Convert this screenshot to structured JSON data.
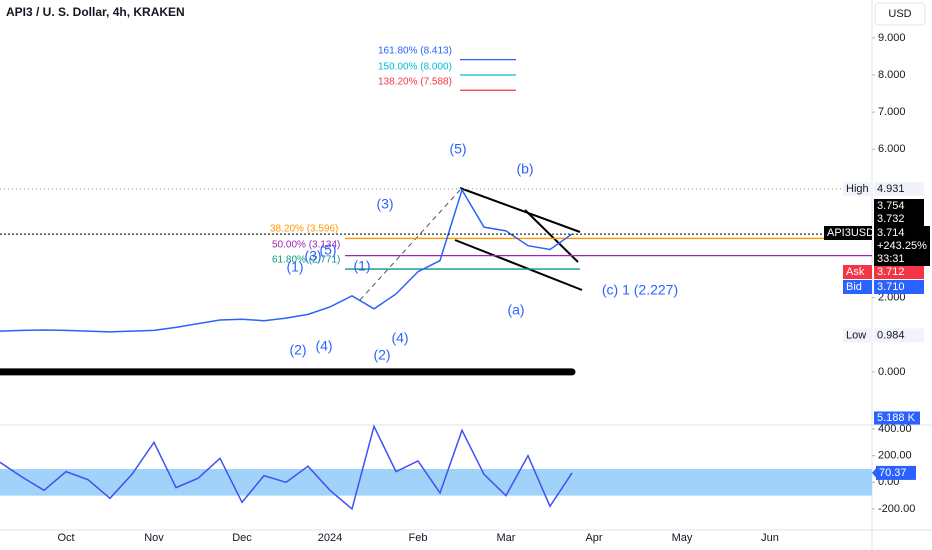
{
  "header": {
    "title": "API3 / U. S. Dollar, 4h, KRAKEN",
    "currency": "USD"
  },
  "chart_data": [
    {
      "type": "line",
      "categories": [
        null,
        null,
        null,
        "Oct",
        null,
        null,
        null,
        "Nov",
        null,
        null,
        null,
        "Dec",
        null,
        null,
        null,
        "2024",
        null,
        null,
        null,
        "Feb",
        null,
        null,
        null,
        "Mar",
        null,
        null,
        null,
        "Apr",
        null,
        null,
        null,
        "May",
        null,
        null,
        null,
        "Jun",
        null,
        null,
        null,
        null
      ],
      "values": [
        1.1,
        1.12,
        1.13,
        1.12,
        1.1,
        1.08,
        1.1,
        1.12,
        1.2,
        1.3,
        1.4,
        1.42,
        1.38,
        1.45,
        1.55,
        1.75,
        2.05,
        1.7,
        2.1,
        2.7,
        3.0,
        4.9,
        3.9,
        3.8,
        3.4,
        3.3,
        3.714,
        null,
        null,
        null,
        null,
        null,
        null,
        null,
        null,
        null,
        null,
        null,
        null,
        null
      ],
      "color": "#2962ff",
      "ylim": [
        -1.43,
        10.02
      ],
      "yticks": [
        {
          "value": 9,
          "label": "9.000"
        },
        {
          "value": 8,
          "label": "8.000"
        },
        {
          "value": 7,
          "label": "7.000"
        },
        {
          "value": 6,
          "label": "6.000"
        },
        {
          "value": 2,
          "label": "2.000"
        },
        {
          "value": 0,
          "label": "0.000"
        }
      ],
      "fib_levels": [
        {
          "label": "161.80% (8.413)",
          "value": 8.413,
          "color": "#2962ff"
        },
        {
          "label": "150.00% (8.000)",
          "value": 8.0,
          "color": "#00bcd4"
        },
        {
          "label": "138.20% (7.588)",
          "value": 7.588,
          "color": "#f23645"
        },
        {
          "label": "38.20% (3.596)",
          "value": 3.596,
          "color": "#ff9800"
        },
        {
          "label": "50.00% (3.134)",
          "value": 3.134,
          "color": "#9c27b0"
        },
        {
          "label": "61.80% (2.771)",
          "value": 2.771,
          "color": "#089981"
        }
      ],
      "annotations": [
        "(5)",
        "(b)",
        "(3)",
        "(1)",
        "(3)",
        "(5)",
        "(1)",
        "(a)",
        "(c) 1 (2.227)",
        "(2)",
        "(4)",
        "(2)",
        "(4)"
      ],
      "price_labels": [
        {
          "name": "High",
          "value": 4.931,
          "label": "4.931"
        },
        {
          "name": "Low",
          "value": 0.984,
          "label": "0.984"
        },
        {
          "value": 3.754,
          "label": "3.754"
        },
        {
          "value": 3.732,
          "label": "3.732"
        },
        {
          "name": "Ask",
          "value": 3.712,
          "label": "3.712"
        },
        {
          "name": "Bid",
          "value": 3.71,
          "label": "3.710"
        }
      ],
      "last": {
        "name": "API3USD",
        "change": "+243.25%",
        "countdown": "33:31"
      }
    },
    {
      "type": "line",
      "values": [
        150,
        40,
        -60,
        80,
        20,
        -120,
        60,
        300,
        -40,
        30,
        180,
        -150,
        50,
        0,
        120,
        -60,
        -200,
        420,
        80,
        160,
        -80,
        390,
        60,
        -100,
        200,
        -180,
        70.37,
        null,
        null,
        null,
        null,
        null,
        null,
        null,
        null,
        null,
        null,
        null,
        null,
        null
      ],
      "color": "#3f51f5",
      "ylim": [
        -358,
        430
      ],
      "yticks": [
        {
          "value": 400,
          "label": "400.00"
        },
        {
          "value": 200,
          "label": "200.00"
        },
        {
          "value": 0,
          "label": "0.00"
        },
        {
          "value": -200,
          "label": "-200.00"
        }
      ],
      "band": [
        -100,
        100
      ],
      "volume_label": "5.188 K"
    }
  ]
}
